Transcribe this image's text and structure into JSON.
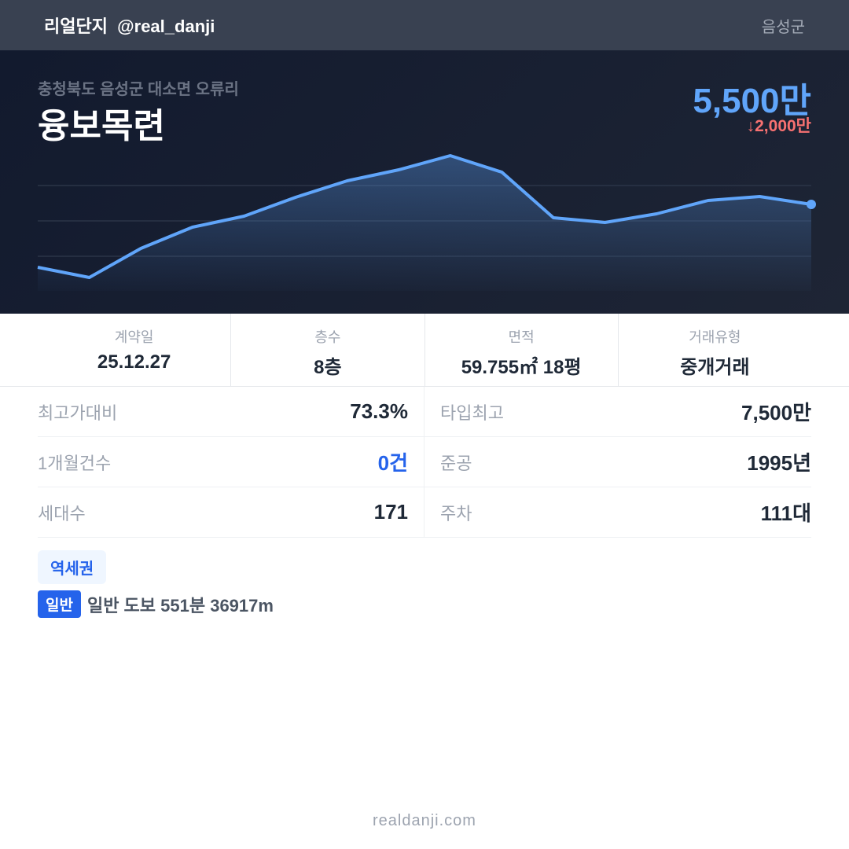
{
  "header": {
    "brand": "리얼단지  @real_danji",
    "region": "음성군"
  },
  "hero": {
    "address": "충청북도 음성군 대소면 오류리",
    "name": "융보목련",
    "price": "5,500만",
    "change": "↓2,000만"
  },
  "chart_data": {
    "type": "area",
    "values": [
      30,
      17,
      54,
      81,
      95,
      119,
      140,
      154,
      172,
      151,
      93,
      87,
      98,
      115,
      120,
      110
    ],
    "color": "#60a5fa",
    "grid": true
  },
  "stats": [
    {
      "label": "계약일",
      "value": "25.12.27"
    },
    {
      "label": "층수",
      "value": "8층"
    },
    {
      "label": "면적",
      "value": "59.755㎡ 18평"
    },
    {
      "label": "거래유형",
      "value": "중개거래"
    }
  ],
  "details": [
    {
      "label": "최고가대비",
      "value": "73.3%"
    },
    {
      "label": "타입최고",
      "value": "7,500만"
    },
    {
      "label": "1개월건수",
      "value": "0건",
      "highlight": true
    },
    {
      "label": "준공",
      "value": "1995년"
    },
    {
      "label": "세대수",
      "value": "171"
    },
    {
      "label": "주차",
      "value": "111대"
    }
  ],
  "station": {
    "tag": "역세권",
    "badge": "일반",
    "text": "일반 도보 551분 36917m"
  },
  "footer": "realdanji.com"
}
